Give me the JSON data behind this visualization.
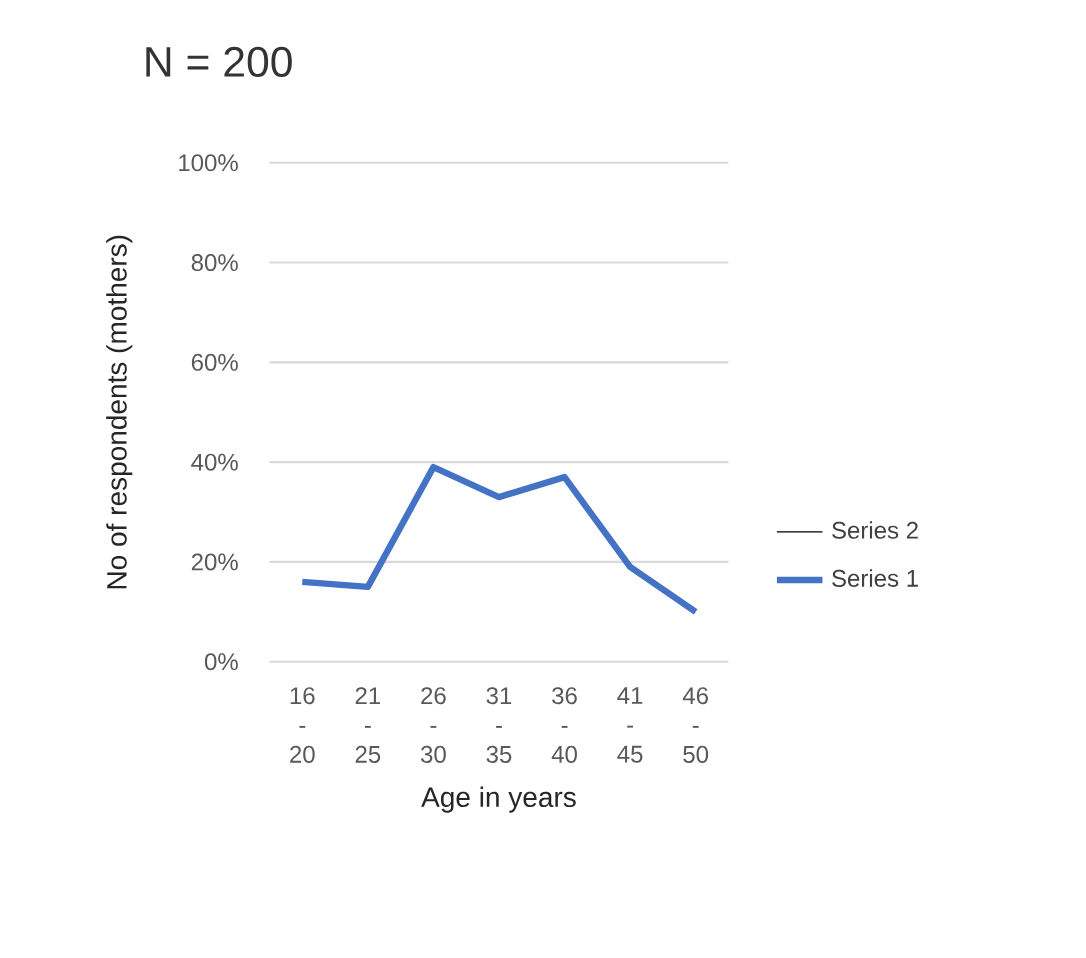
{
  "chart_data": {
    "type": "line",
    "title": "N = 200",
    "xlabel": "Age in years",
    "ylabel": "No of respondents (mothers)",
    "categories": [
      "16 - 20",
      "21 - 25",
      "26 - 30",
      "31 - 35",
      "36 - 40",
      "41 - 45",
      "46 - 50"
    ],
    "series": [
      {
        "name": "Series 1",
        "color": "#4472c4",
        "values": [
          16,
          15,
          39,
          33,
          37,
          19,
          10
        ]
      },
      {
        "name": "Series 2",
        "values": [
          null,
          null,
          null,
          null,
          null,
          null,
          null
        ]
      }
    ],
    "ylim": [
      0,
      100
    ],
    "yticks": [
      {
        "value": 0,
        "label": "0%"
      },
      {
        "value": 20,
        "label": "20%"
      },
      {
        "value": 40,
        "label": "40%"
      },
      {
        "value": 60,
        "label": "60%"
      },
      {
        "value": 80,
        "label": "80%"
      },
      {
        "value": 100,
        "label": "100%"
      }
    ],
    "grid": "y",
    "legend": "right",
    "marker": "none",
    "line_style": "solid"
  }
}
